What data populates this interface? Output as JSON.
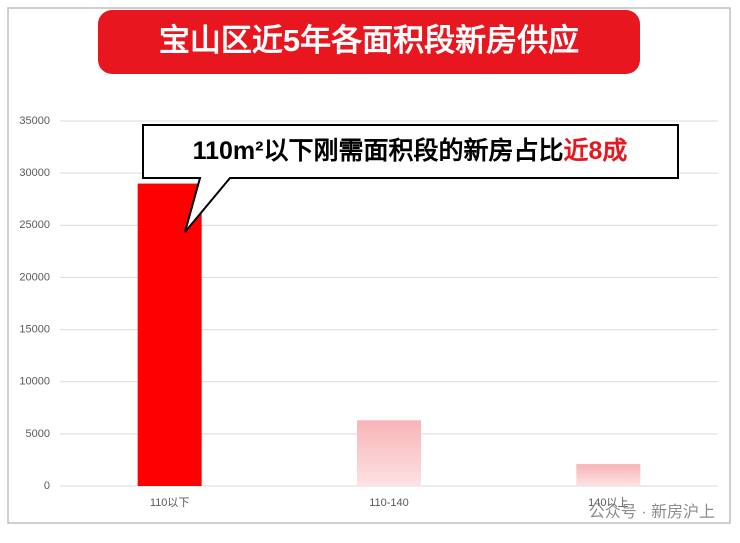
{
  "chart_data": {
    "type": "bar",
    "title": "宝山区近5年各面积段新房供应",
    "annotation": {
      "text": "110m²以下刚需面积段的新房占比",
      "highlight": "近8成"
    },
    "categories": [
      "110以下",
      "110-140",
      "140以上"
    ],
    "values": [
      29000,
      6300,
      2100
    ],
    "colors": [
      "#ff0000",
      "#f9a3a7",
      "#f9a3a7"
    ],
    "ylim": [
      0,
      35000
    ],
    "yticks": [
      0,
      5000,
      10000,
      15000,
      20000,
      25000,
      30000,
      35000
    ],
    "grid": true,
    "watermark": "公众号 · 新房沪上"
  }
}
